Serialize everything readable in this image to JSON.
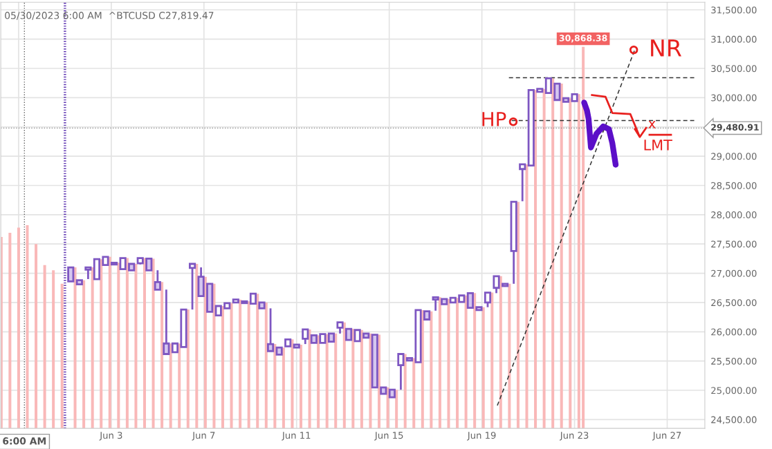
{
  "chart_data": {
    "type": "candlestick",
    "title": "05/30/2023 6:00 AM  ^BTCUSD C27,819.47",
    "color": "#7e57c2",
    "x": [
      "2023-06-01T06:00",
      "2023-06-01T15:00",
      "2023-06-02T00:00",
      "2023-06-02T09:00",
      "2023-06-02T18:00",
      "2023-06-03T03:00",
      "2023-06-03T12:00",
      "2023-06-03T21:00",
      "2023-06-04T06:00",
      "2023-06-04T15:00",
      "2023-06-05T00:00",
      "2023-06-05T09:00",
      "2023-06-05T18:00",
      "2023-06-06T03:00",
      "2023-06-06T12:00",
      "2023-06-06T21:00",
      "2023-06-07T06:00",
      "2023-06-07T15:00",
      "2023-06-08T00:00",
      "2023-06-08T09:00",
      "2023-06-08T18:00",
      "2023-06-09T03:00",
      "2023-06-09T12:00",
      "2023-06-09T21:00",
      "2023-06-10T06:00",
      "2023-06-10T15:00",
      "2023-06-11T00:00",
      "2023-06-11T09:00",
      "2023-06-11T18:00",
      "2023-06-12T03:00",
      "2023-06-12T12:00",
      "2023-06-12T21:00",
      "2023-06-13T06:00",
      "2023-06-13T15:00",
      "2023-06-14T00:00",
      "2023-06-14T09:00",
      "2023-06-14T18:00",
      "2023-06-15T03:00",
      "2023-06-15T12:00",
      "2023-06-15T21:00",
      "2023-06-16T06:00",
      "2023-06-16T15:00",
      "2023-06-17T00:00",
      "2023-06-17T09:00",
      "2023-06-17T18:00",
      "2023-06-18T03:00",
      "2023-06-18T12:00",
      "2023-06-18T21:00",
      "2023-06-19T06:00",
      "2023-06-19T15:00",
      "2023-06-20T00:00",
      "2023-06-20T09:00",
      "2023-06-20T18:00",
      "2023-06-21T03:00",
      "2023-06-21T12:00",
      "2023-06-21T21:00",
      "2023-06-22T06:00",
      "2023-06-22T15:00",
      "2023-06-23T00:00"
    ],
    "ohlc": [
      [
        27100,
        27100,
        26860,
        26860
      ],
      [
        26880,
        26880,
        26810,
        26810
      ],
      [
        27060,
        27100,
        26900,
        27100
      ],
      [
        26900,
        27240,
        26900,
        27240
      ],
      [
        27140,
        27280,
        27140,
        27280
      ],
      [
        27180,
        27180,
        27150,
        27150
      ],
      [
        27070,
        27260,
        27070,
        27260
      ],
      [
        27160,
        27160,
        27050,
        27050
      ],
      [
        27170,
        27260,
        27150,
        27260
      ],
      [
        27250,
        27250,
        27050,
        27050
      ],
      [
        26850,
        27050,
        26720,
        26720
      ],
      [
        25800,
        26720,
        25610,
        25620
      ],
      [
        25650,
        25800,
        25650,
        25800
      ],
      [
        25740,
        26380,
        25740,
        26380
      ],
      [
        27090,
        27160,
        26380,
        27160
      ],
      [
        26940,
        27100,
        26610,
        26610
      ],
      [
        26820,
        26820,
        26340,
        26340
      ],
      [
        26280,
        26440,
        26280,
        26440
      ],
      [
        26400,
        26490,
        26400,
        26490
      ],
      [
        26500,
        26550,
        26490,
        26550
      ],
      [
        26520,
        26520,
        26490,
        26490
      ],
      [
        26480,
        26650,
        26480,
        26650
      ],
      [
        26500,
        26500,
        26400,
        26400
      ],
      [
        25790,
        26400,
        25670,
        25670
      ],
      [
        25730,
        25730,
        25610,
        25610
      ],
      [
        25750,
        25870,
        25750,
        25870
      ],
      [
        25780,
        25780,
        25730,
        25730
      ],
      [
        25880,
        26040,
        25790,
        26040
      ],
      [
        25940,
        25940,
        25810,
        25810
      ],
      [
        25810,
        25960,
        25810,
        25960
      ],
      [
        25970,
        25970,
        25830,
        25830
      ],
      [
        26070,
        26160,
        25970,
        26160
      ],
      [
        26050,
        26050,
        25860,
        25860
      ],
      [
        25840,
        26030,
        25840,
        26030
      ],
      [
        25970,
        25970,
        25900,
        25900
      ],
      [
        25950,
        25950,
        25050,
        25050
      ],
      [
        25050,
        25050,
        24940,
        24940
      ],
      [
        25010,
        25010,
        24880,
        24880
      ],
      [
        25430,
        25620,
        25010,
        25620
      ],
      [
        25550,
        25550,
        25510,
        25510
      ],
      [
        25480,
        26370,
        25480,
        26370
      ],
      [
        26350,
        26350,
        26210,
        26210
      ],
      [
        26550,
        26590,
        26360,
        26590
      ],
      [
        26560,
        26560,
        26470,
        26470
      ],
      [
        26500,
        26580,
        26500,
        26580
      ],
      [
        26510,
        26620,
        26510,
        26620
      ],
      [
        26660,
        26660,
        26410,
        26410
      ],
      [
        26420,
        26420,
        26370,
        26370
      ],
      [
        26500,
        26670,
        26420,
        26670
      ],
      [
        26750,
        26950,
        26660,
        26950
      ],
      [
        26820,
        26820,
        26780,
        26780
      ],
      [
        27380,
        28220,
        26820,
        28220
      ],
      [
        28780,
        28860,
        28230,
        28860
      ],
      [
        28840,
        30130,
        28840,
        30130
      ],
      [
        30100,
        30150,
        30100,
        30150
      ],
      [
        30080,
        30330,
        30080,
        30330
      ],
      [
        30240,
        30240,
        29960,
        29960
      ],
      [
        29990,
        29990,
        29930,
        29930
      ],
      [
        29940,
        30060,
        29940,
        30060
      ]
    ],
    "series": [
      {
        "type": "bar",
        "color": "#f9b8b8",
        "x": [
          "2023-05-29T06:00",
          "2023-05-29T15:00",
          "2023-05-30T00:00",
          "2023-05-30T09:00",
          "2023-05-30T18:00",
          "2023-05-31T03:00",
          "2023-05-31T12:00",
          "2023-05-31T21:00",
          "2023-06-01T10:30",
          "2023-06-01T19:30",
          "2023-06-02T04:30",
          "2023-06-02T13:30",
          "2023-06-02T22:30",
          "2023-06-03T07:30",
          "2023-06-03T16:30",
          "2023-06-04T01:30",
          "2023-06-04T10:30",
          "2023-06-04T19:30",
          "2023-06-05T04:30",
          "2023-06-05T13:30",
          "2023-06-05T22:30",
          "2023-06-06T07:30",
          "2023-06-06T16:30",
          "2023-06-07T01:30",
          "2023-06-07T10:30",
          "2023-06-07T19:30",
          "2023-06-08T04:30",
          "2023-06-08T13:30",
          "2023-06-08T22:30",
          "2023-06-09T07:30",
          "2023-06-09T16:30",
          "2023-06-10T01:30",
          "2023-06-10T10:30",
          "2023-06-10T19:30",
          "2023-06-11T04:30",
          "2023-06-11T13:30",
          "2023-06-11T22:30",
          "2023-06-12T07:30",
          "2023-06-12T16:30",
          "2023-06-13T01:30",
          "2023-06-13T10:30",
          "2023-06-13T19:30",
          "2023-06-14T04:30",
          "2023-06-14T13:30",
          "2023-06-14T22:30",
          "2023-06-15T07:30",
          "2023-06-15T16:30",
          "2023-06-16T01:30",
          "2023-06-16T10:30",
          "2023-06-16T19:30",
          "2023-06-17T04:30",
          "2023-06-17T13:30",
          "2023-06-17T22:30",
          "2023-06-18T07:30",
          "2023-06-18T16:30",
          "2023-06-19T01:30",
          "2023-06-19T10:30",
          "2023-06-19T19:30",
          "2023-06-20T04:30",
          "2023-06-20T13:30",
          "2023-06-20T22:30",
          "2023-06-21T07:30",
          "2023-06-21T16:30",
          "2023-06-22T01:30",
          "2023-06-22T10:30",
          "2023-06-22T19:30",
          "2023-06-23T04:30",
          "2023-06-23T09:00"
        ],
        "values": [
          27620,
          27690,
          27780,
          27820,
          27500,
          27140,
          27050,
          26820,
          27100,
          26880,
          27100,
          27240,
          27280,
          27180,
          27260,
          27160,
          27260,
          27250,
          26850,
          25800,
          25800,
          26380,
          27160,
          26940,
          26820,
          26440,
          26490,
          26550,
          26520,
          26650,
          26500,
          25790,
          25730,
          25870,
          25780,
          26040,
          25940,
          25960,
          25970,
          26160,
          26050,
          26030,
          25970,
          25950,
          25050,
          25010,
          25620,
          25550,
          26370,
          26350,
          26590,
          26560,
          26580,
          26620,
          26660,
          26420,
          26670,
          26950,
          26820,
          28220,
          28860,
          30130,
          30150,
          30330,
          30240,
          29990,
          30060,
          30868.38
        ],
        "value_labels": [
          null,
          null,
          null,
          null,
          null,
          null,
          null,
          null,
          null,
          null,
          null,
          null,
          null,
          null,
          null,
          null,
          null,
          null,
          null,
          null,
          null,
          null,
          null,
          null,
          null,
          null,
          null,
          null,
          null,
          null,
          null,
          null,
          null,
          null,
          null,
          null,
          null,
          null,
          null,
          null,
          null,
          null,
          null,
          null,
          null,
          null,
          null,
          null,
          null,
          null,
          null,
          null,
          null,
          null,
          null,
          null,
          null,
          null,
          null,
          null,
          null,
          null,
          null,
          null,
          null,
          null,
          null,
          "30,868.38"
        ]
      },
      {
        "type": "line",
        "color": "#333333",
        "line_style": "dashed",
        "x": [
          "2023-06-19T16:00",
          "2023-06-25T14:00"
        ],
        "values": [
          24740,
          30800
        ]
      },
      {
        "type": "line",
        "color": "#333333",
        "line_style": "dashed",
        "x": [
          "2023-06-20T04:00",
          "2023-06-28T04:00"
        ],
        "values": [
          30340,
          30340
        ]
      },
      {
        "type": "line",
        "color": "#333333",
        "line_style": "dashed",
        "x": [
          "2023-06-20T07:00",
          "2023-06-28T04:00"
        ],
        "values": [
          29610,
          29610
        ]
      }
    ],
    "ref_lines": [
      {
        "axis": "x",
        "value": "2023-05-30T06:00",
        "label": "6:00 AM",
        "color": "#666666",
        "line_style": "dotted"
      },
      {
        "axis": "x",
        "value": "2023-06-01T00:00",
        "label": null,
        "color": "#5e35b1",
        "line_style": "dotted"
      },
      {
        "axis": "y",
        "value": 29480.91,
        "label": "29,480.91",
        "color": "#888888",
        "line_style": "dotted"
      }
    ],
    "annotations": [
      "HP",
      "NR",
      "x",
      "LMT"
    ],
    "xlim": [
      "2023-05-29T05:30",
      "2023-06-28T15:00"
    ],
    "xticks": [
      {
        "value": "2023-05-30",
        "label": null
      },
      {
        "value": "2023-06-03",
        "label": "Jun 3"
      },
      {
        "value": "2023-06-07",
        "label": "Jun 7"
      },
      {
        "value": "2023-06-11",
        "label": "Jun 11"
      },
      {
        "value": "2023-06-15",
        "label": "Jun 15"
      },
      {
        "value": "2023-06-19",
        "label": "Jun 19"
      },
      {
        "value": "2023-06-23",
        "label": "Jun 23"
      },
      {
        "value": "2023-06-27",
        "label": "Jun 27"
      }
    ],
    "ylim": [
      24350,
      31630
    ],
    "yticks": [
      {
        "value": 24500,
        "label": "24,500.00"
      },
      {
        "value": 25000,
        "label": "25,000.00"
      },
      {
        "value": 25500,
        "label": "25,500.00"
      },
      {
        "value": 26000,
        "label": "26,000.00"
      },
      {
        "value": 26500,
        "label": "26,500.00"
      },
      {
        "value": 27000,
        "label": "27,000.00"
      },
      {
        "value": 27500,
        "label": "27,500.00"
      },
      {
        "value": 28000,
        "label": "28,000.00"
      },
      {
        "value": 28500,
        "label": "28,500.00"
      },
      {
        "value": 29000,
        "label": "29,000.00"
      },
      {
        "value": 29500,
        "label": null
      },
      {
        "value": 30000,
        "label": "30,000.00"
      },
      {
        "value": 30500,
        "label": "30,500.00"
      },
      {
        "value": 31000,
        "label": "31,000.00"
      },
      {
        "value": 31500,
        "label": "31,500.00"
      }
    ],
    "grid": true,
    "legend": false
  }
}
